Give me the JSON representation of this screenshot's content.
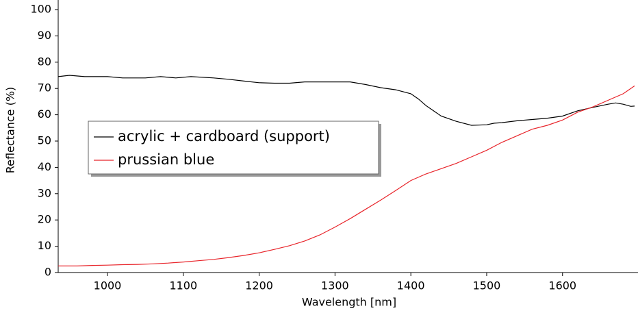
{
  "chart_data": {
    "type": "line",
    "xlabel": "Wavelength [nm]",
    "ylabel": "Reflectance (%)",
    "xlim": [
      935,
      1695
    ],
    "xticks": [
      1000,
      1100,
      1200,
      1300,
      1400,
      1500,
      1600
    ],
    "ylim": [
      0,
      100
    ],
    "yticks": [
      0,
      10,
      20,
      30,
      40,
      50,
      60,
      70,
      80,
      90,
      100
    ],
    "grid": false,
    "legend": "left",
    "series": [
      {
        "name": "acrylic + cardboard (support)",
        "color": "#000000",
        "x": [
          935,
          950,
          970,
          1000,
          1020,
          1050,
          1070,
          1090,
          1110,
          1140,
          1160,
          1180,
          1200,
          1220,
          1240,
          1260,
          1280,
          1300,
          1320,
          1340,
          1360,
          1380,
          1400,
          1410,
          1420,
          1440,
          1460,
          1480,
          1500,
          1510,
          1520,
          1540,
          1560,
          1580,
          1600,
          1620,
          1640,
          1660,
          1670,
          1680,
          1690,
          1695
        ],
        "values": [
          74.5,
          75,
          74.5,
          74.5,
          74,
          74,
          74.5,
          74,
          74.5,
          74,
          73.5,
          72.8,
          72.2,
          72,
          72,
          72.5,
          72.5,
          72.5,
          72.5,
          71.5,
          70.3,
          69.5,
          68,
          66,
          63.5,
          59.5,
          57.5,
          56,
          56.2,
          56.8,
          57,
          57.7,
          58.2,
          58.7,
          59.5,
          61.5,
          62.8,
          64,
          64.5,
          64,
          63.2,
          63.3
        ]
      },
      {
        "name": "prussian blue",
        "color": "#e8242a",
        "x": [
          935,
          960,
          980,
          1000,
          1020,
          1040,
          1060,
          1080,
          1100,
          1120,
          1140,
          1160,
          1180,
          1200,
          1220,
          1240,
          1260,
          1280,
          1300,
          1320,
          1340,
          1360,
          1380,
          1400,
          1420,
          1440,
          1460,
          1480,
          1500,
          1520,
          1540,
          1560,
          1580,
          1600,
          1620,
          1640,
          1660,
          1680,
          1695
        ],
        "values": [
          2.5,
          2.5,
          2.7,
          2.8,
          3,
          3.1,
          3.3,
          3.6,
          4,
          4.5,
          5,
          5.7,
          6.5,
          7.5,
          8.8,
          10.2,
          12,
          14.3,
          17.3,
          20.5,
          24,
          27.5,
          31.2,
          35,
          37.5,
          39.5,
          41.5,
          44,
          46.5,
          49.5,
          52,
          54.5,
          56,
          58,
          61,
          63,
          65.5,
          68,
          71
        ]
      }
    ]
  }
}
